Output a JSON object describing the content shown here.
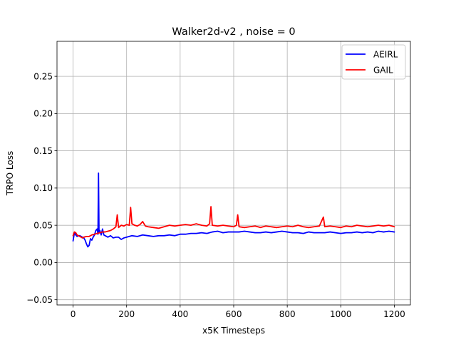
{
  "chart_data": {
    "type": "line",
    "title": "Walker2d-v2 , noise = 0",
    "xlabel": "x5K Timesteps",
    "ylabel": "TRPO Loss",
    "xlim": [
      -60,
      1260
    ],
    "ylim": [
      -0.057,
      0.297
    ],
    "xticks": [
      0,
      200,
      400,
      600,
      800,
      1000,
      1200
    ],
    "xtick_labels": [
      "0",
      "200",
      "400",
      "600",
      "800",
      "1000",
      "1200"
    ],
    "yticks": [
      -0.05,
      0.0,
      0.05,
      0.1,
      0.15,
      0.2,
      0.25
    ],
    "ytick_labels": [
      "−0.05",
      "0.00",
      "0.05",
      "0.10",
      "0.15",
      "0.20",
      "0.25"
    ],
    "grid": true,
    "legend_position": "top-right",
    "series": [
      {
        "name": "AEIRL",
        "color": "#0000ff",
        "x": [
          0,
          5,
          10,
          15,
          20,
          25,
          30,
          35,
          40,
          45,
          50,
          55,
          60,
          65,
          70,
          75,
          80,
          85,
          90,
          93,
          95,
          97,
          100,
          105,
          110,
          115,
          120,
          125,
          130,
          140,
          150,
          160,
          170,
          180,
          190,
          200,
          220,
          240,
          260,
          280,
          300,
          320,
          340,
          360,
          380,
          400,
          420,
          440,
          460,
          480,
          500,
          520,
          540,
          560,
          580,
          600,
          620,
          640,
          660,
          680,
          700,
          720,
          740,
          760,
          780,
          800,
          820,
          840,
          860,
          880,
          900,
          920,
          940,
          960,
          980,
          1000,
          1020,
          1040,
          1060,
          1080,
          1100,
          1120,
          1140,
          1160,
          1180,
          1200
        ],
        "y": [
          0.029,
          0.04,
          0.037,
          0.035,
          0.036,
          0.036,
          0.035,
          0.034,
          0.033,
          0.03,
          0.025,
          0.021,
          0.023,
          0.032,
          0.03,
          0.034,
          0.037,
          0.043,
          0.045,
          0.038,
          0.12,
          0.04,
          0.043,
          0.037,
          0.045,
          0.037,
          0.036,
          0.035,
          0.034,
          0.036,
          0.033,
          0.034,
          0.034,
          0.031,
          0.033,
          0.034,
          0.036,
          0.035,
          0.037,
          0.036,
          0.035,
          0.036,
          0.036,
          0.037,
          0.036,
          0.038,
          0.038,
          0.039,
          0.039,
          0.04,
          0.039,
          0.041,
          0.042,
          0.04,
          0.041,
          0.041,
          0.041,
          0.042,
          0.041,
          0.04,
          0.04,
          0.041,
          0.04,
          0.041,
          0.042,
          0.041,
          0.04,
          0.04,
          0.039,
          0.041,
          0.04,
          0.04,
          0.04,
          0.041,
          0.04,
          0.039,
          0.04,
          0.04,
          0.041,
          0.04,
          0.041,
          0.04,
          0.042,
          0.041,
          0.042,
          0.041
        ]
      },
      {
        "name": "GAIL",
        "color": "#ff0000",
        "x": [
          0,
          5,
          10,
          15,
          20,
          25,
          30,
          35,
          40,
          50,
          60,
          70,
          80,
          90,
          100,
          110,
          120,
          130,
          140,
          150,
          160,
          165,
          170,
          180,
          190,
          200,
          210,
          215,
          220,
          230,
          240,
          250,
          260,
          270,
          280,
          300,
          320,
          340,
          360,
          380,
          400,
          420,
          440,
          460,
          480,
          500,
          510,
          515,
          520,
          540,
          560,
          580,
          600,
          610,
          615,
          620,
          640,
          660,
          680,
          700,
          720,
          740,
          760,
          780,
          800,
          820,
          840,
          860,
          880,
          900,
          920,
          935,
          940,
          960,
          980,
          1000,
          1020,
          1040,
          1060,
          1080,
          1100,
          1120,
          1140,
          1160,
          1180,
          1200
        ],
        "y": [
          0.036,
          0.041,
          0.04,
          0.037,
          0.036,
          0.035,
          0.034,
          0.033,
          0.034,
          0.035,
          0.035,
          0.037,
          0.038,
          0.039,
          0.04,
          0.041,
          0.041,
          0.042,
          0.043,
          0.045,
          0.048,
          0.064,
          0.047,
          0.05,
          0.049,
          0.051,
          0.05,
          0.074,
          0.052,
          0.05,
          0.049,
          0.051,
          0.055,
          0.049,
          0.048,
          0.047,
          0.046,
          0.048,
          0.05,
          0.049,
          0.05,
          0.051,
          0.05,
          0.052,
          0.05,
          0.049,
          0.052,
          0.075,
          0.05,
          0.049,
          0.05,
          0.049,
          0.048,
          0.05,
          0.064,
          0.048,
          0.047,
          0.048,
          0.049,
          0.047,
          0.049,
          0.048,
          0.047,
          0.048,
          0.049,
          0.048,
          0.05,
          0.048,
          0.047,
          0.048,
          0.049,
          0.061,
          0.048,
          0.049,
          0.048,
          0.047,
          0.049,
          0.048,
          0.05,
          0.049,
          0.048,
          0.049,
          0.05,
          0.049,
          0.05,
          0.048
        ]
      }
    ]
  }
}
